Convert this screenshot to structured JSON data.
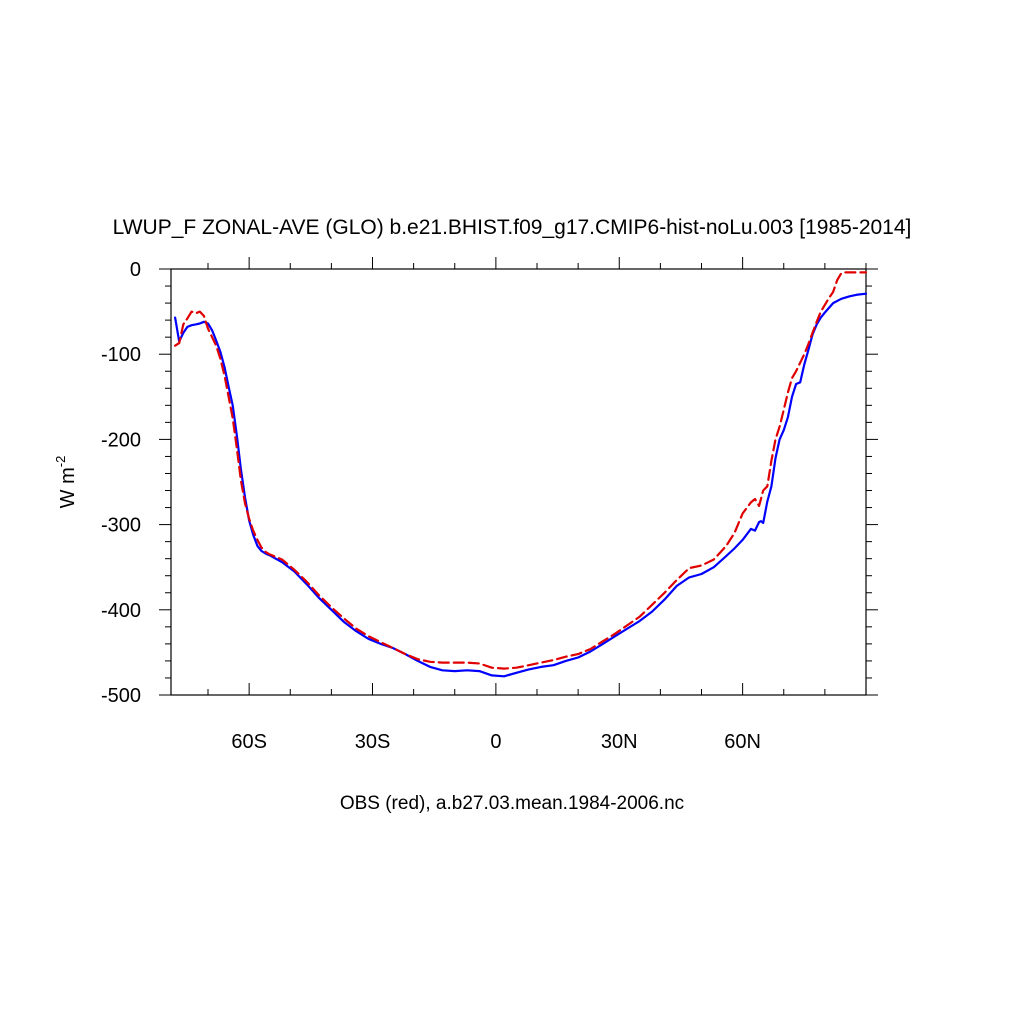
{
  "chart_data": {
    "type": "line",
    "title": "LWUP_F ZONAL-AVE (GLO) b.e21.BHIST.f09_g17.CMIP6-hist-noLu.003 [1985-2014]",
    "ylabel": "W m",
    "ylabel_exponent": "-2",
    "xlabel": "OBS (red), a.b27.03.mean.1984-2006.nc",
    "xlim": [
      -79,
      90
    ],
    "ylim": [
      -500,
      0
    ],
    "x_ticks": [
      -60,
      -30,
      0,
      30,
      60
    ],
    "x_tick_labels": [
      "60S",
      "30S",
      "0",
      "30N",
      "60N"
    ],
    "y_ticks": [
      0,
      -100,
      -200,
      -300,
      -400,
      -500
    ],
    "y_tick_labels": [
      "0",
      "-100",
      "-200",
      "-300",
      "-400",
      "-500"
    ],
    "grid": false,
    "series": [
      {
        "color": "#0000ff",
        "dash": "solid",
        "x": [
          -78,
          -77,
          -76,
          -75,
          -74,
          -73,
          -72,
          -71,
          -70,
          -69,
          -68,
          -67,
          -66,
          -65,
          -64,
          -63,
          -62,
          -61,
          -60,
          -59,
          -58,
          -57,
          -56,
          -55,
          -52,
          -49,
          -46,
          -43,
          -40,
          -37,
          -34,
          -31,
          -28,
          -25,
          -22,
          -19,
          -16,
          -13,
          -10,
          -7,
          -4,
          -1,
          2,
          5,
          8,
          11,
          14,
          17,
          20,
          23,
          26,
          29,
          32,
          35,
          38,
          41,
          44,
          47,
          50,
          53,
          56,
          58,
          60,
          62,
          63,
          64,
          64.5,
          65,
          66,
          67,
          68,
          69,
          70,
          71,
          72,
          73,
          74,
          75,
          76,
          77,
          78,
          79,
          80,
          82,
          84,
          86,
          88,
          90
        ],
        "y": [
          -57,
          -85,
          -75,
          -68,
          -66,
          -65,
          -64,
          -62,
          -64,
          -72,
          -84,
          -97,
          -115,
          -138,
          -160,
          -195,
          -235,
          -268,
          -295,
          -312,
          -325,
          -331,
          -334,
          -336,
          -344,
          -355,
          -370,
          -386,
          -400,
          -414,
          -425,
          -434,
          -440,
          -445,
          -452,
          -460,
          -467,
          -471,
          -472,
          -471,
          -472,
          -477,
          -478,
          -474,
          -470,
          -467,
          -465,
          -460,
          -456,
          -449,
          -440,
          -431,
          -422,
          -413,
          -402,
          -388,
          -372,
          -362,
          -358,
          -350,
          -337,
          -328,
          -318,
          -305,
          -307,
          -297,
          -296,
          -298,
          -273,
          -255,
          -222,
          -200,
          -189,
          -174,
          -150,
          -135,
          -133,
          -112,
          -95,
          -77,
          -65,
          -57,
          -51,
          -40,
          -35,
          -32,
          -30,
          -29
        ]
      },
      {
        "color": "#e00000",
        "dash": "dashed",
        "x": [
          -78,
          -77,
          -76,
          -75,
          -74,
          -73,
          -72,
          -71,
          -70,
          -69,
          -68,
          -67,
          -66,
          -65,
          -64,
          -63,
          -62,
          -61,
          -60,
          -59,
          -58,
          -57,
          -56,
          -55,
          -52,
          -49,
          -46,
          -43,
          -40,
          -37,
          -34,
          -31,
          -28,
          -25,
          -22,
          -19,
          -16,
          -13,
          -10,
          -7,
          -4,
          -1,
          2,
          5,
          8,
          11,
          14,
          17,
          20,
          23,
          26,
          29,
          32,
          35,
          38,
          41,
          44,
          47,
          50,
          53,
          56,
          58,
          60,
          62,
          63,
          64,
          65,
          66,
          67,
          68,
          69,
          70,
          71,
          72,
          73,
          74,
          75,
          76,
          77,
          78,
          79,
          80,
          81,
          82,
          83,
          84,
          85,
          86,
          88,
          90
        ],
        "y": [
          -90,
          -87,
          -65,
          -58,
          -50,
          -52,
          -50,
          -55,
          -70,
          -80,
          -90,
          -105,
          -125,
          -150,
          -175,
          -210,
          -248,
          -275,
          -293,
          -307,
          -318,
          -327,
          -332,
          -335,
          -341,
          -353,
          -367,
          -383,
          -397,
          -410,
          -422,
          -431,
          -438,
          -445,
          -452,
          -458,
          -461,
          -462,
          -462,
          -462,
          -463,
          -468,
          -469,
          -468,
          -465,
          -462,
          -459,
          -455,
          -452,
          -446,
          -437,
          -428,
          -418,
          -408,
          -394,
          -380,
          -365,
          -351,
          -348,
          -341,
          -325,
          -310,
          -287,
          -274,
          -270,
          -278,
          -260,
          -255,
          -225,
          -200,
          -185,
          -165,
          -145,
          -128,
          -120,
          -110,
          -100,
          -88,
          -75,
          -62,
          -50,
          -42,
          -34,
          -27,
          -13,
          -5,
          -4,
          -4,
          -4,
          -4
        ]
      }
    ]
  }
}
